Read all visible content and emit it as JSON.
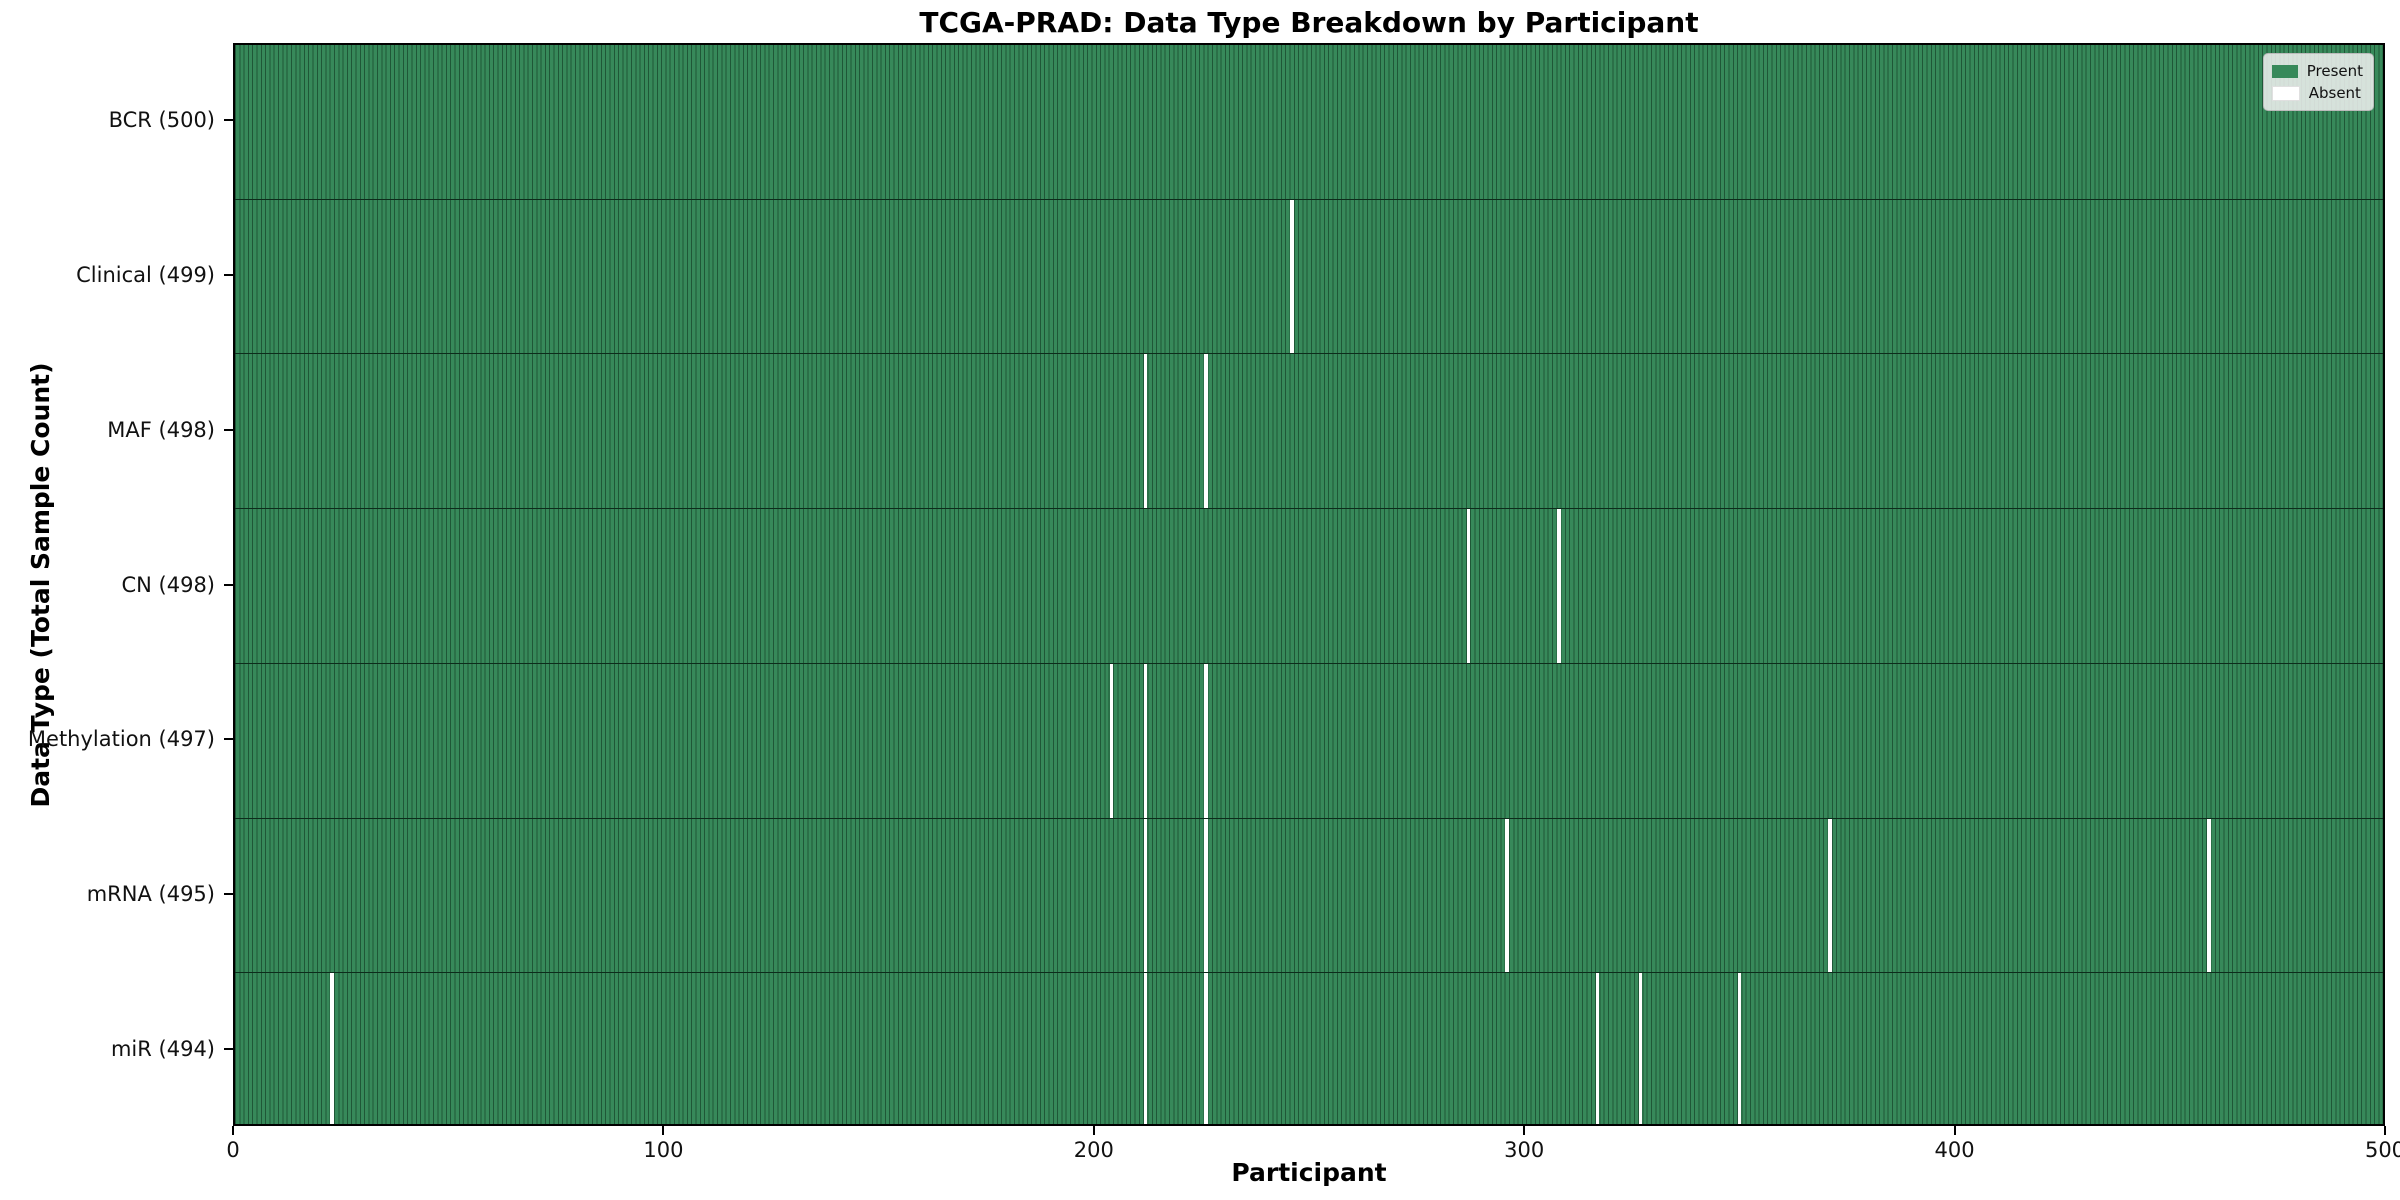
{
  "colors": {
    "present_green": "#37895a",
    "cell_edge_green": "#1f5737",
    "absent_white": "#ffffff",
    "row_divider": "#0d2c1b",
    "axis_black": "#000000",
    "legend_bg": "#f2f2f2"
  },
  "chart_data": {
    "type": "heatmap",
    "title": "TCGA-PRAD: Data Type Breakdown by Participant",
    "xlabel": "Participant",
    "ylabel": "Data Type (Total Sample Count)",
    "legend": {
      "present": "Present",
      "absent": "Absent"
    },
    "x_axis": {
      "min": 0,
      "max": 500,
      "ticks": [
        0,
        100,
        200,
        300,
        400,
        500
      ]
    },
    "n_participants": 500,
    "grid": false,
    "legend_position": "upper right",
    "rows": [
      {
        "label": "BCR (500)",
        "data_type": "BCR",
        "total": 500,
        "absent_participants": []
      },
      {
        "label": "Clinical (499)",
        "data_type": "Clinical",
        "total": 499,
        "absent_participants": [
          245
        ]
      },
      {
        "label": "MAF (498)",
        "data_type": "MAF",
        "total": 498,
        "absent_participants": [
          211,
          225
        ]
      },
      {
        "label": "CN (498)",
        "data_type": "CN",
        "total": 498,
        "absent_participants": [
          286,
          307
        ]
      },
      {
        "label": "Methylation (497)",
        "data_type": "Methylation",
        "total": 497,
        "absent_participants": [
          203,
          211,
          225
        ]
      },
      {
        "label": "mRNA (495)",
        "data_type": "mRNA",
        "total": 495,
        "absent_participants": [
          211,
          225,
          295,
          370,
          458
        ]
      },
      {
        "label": "miR (494)",
        "data_type": "miR",
        "total": 494,
        "absent_participants": [
          22,
          211,
          225,
          316,
          326,
          349
        ]
      }
    ]
  }
}
